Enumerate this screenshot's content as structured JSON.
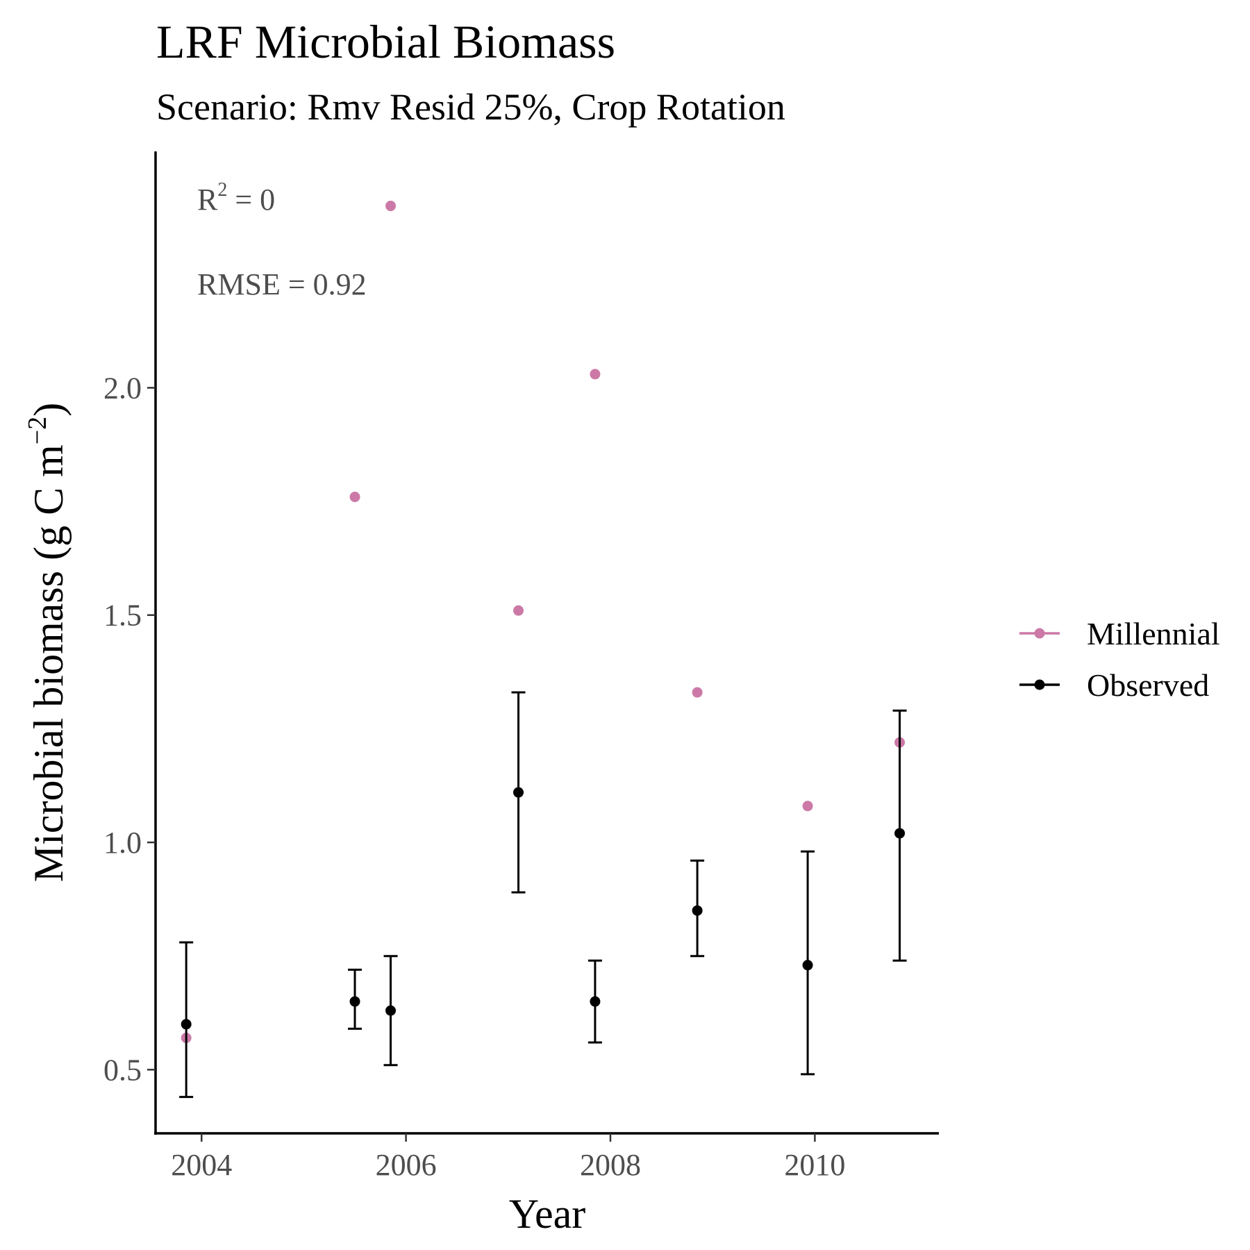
{
  "chart_data": {
    "type": "scatter",
    "title": "LRF Microbial Biomass",
    "subtitle": "Scenario: Rmv Resid 25%, Crop Rotation",
    "xlabel": "Year",
    "ylabel": {
      "main": "Microbial biomass (g C m",
      "superscript": "−2",
      "suffix": ")"
    },
    "xlim": [
      2003.55,
      2011.2
    ],
    "ylim": [
      0.36,
      2.52
    ],
    "x_ticks": [
      2004,
      2006,
      2008,
      2010
    ],
    "x_tick_labels": [
      "2004",
      "2006",
      "2008",
      "2010"
    ],
    "y_ticks": [
      0.5,
      1.0,
      1.5,
      2.0
    ],
    "y_tick_labels": [
      "0.5",
      "1.0",
      "1.5",
      "2.0"
    ],
    "grid": false,
    "legend_position": "right",
    "annotations": {
      "r2": {
        "base": "R",
        "superscript": "2",
        "rest": " = 0"
      },
      "rmse": "RMSE = 0.92"
    },
    "series": [
      {
        "name": "Millennial",
        "color": "#cc79a7",
        "points": [
          {
            "x": 2003.85,
            "y": 0.57
          },
          {
            "x": 2005.5,
            "y": 1.76
          },
          {
            "x": 2005.85,
            "y": 2.4
          },
          {
            "x": 2007.1,
            "y": 1.51
          },
          {
            "x": 2007.85,
            "y": 2.03
          },
          {
            "x": 2008.85,
            "y": 1.33
          },
          {
            "x": 2009.93,
            "y": 1.08
          },
          {
            "x": 2010.83,
            "y": 1.22
          }
        ]
      },
      {
        "name": "Observed",
        "color": "#000000",
        "points": [
          {
            "x": 2003.85,
            "y": 0.6,
            "ymin": 0.44,
            "ymax": 0.78
          },
          {
            "x": 2005.5,
            "y": 0.65,
            "ymin": 0.59,
            "ymax": 0.72
          },
          {
            "x": 2005.85,
            "y": 0.63,
            "ymin": 0.51,
            "ymax": 0.75
          },
          {
            "x": 2007.1,
            "y": 1.11,
            "ymin": 0.89,
            "ymax": 1.33
          },
          {
            "x": 2007.85,
            "y": 0.65,
            "ymin": 0.56,
            "ymax": 0.74
          },
          {
            "x": 2008.85,
            "y": 0.85,
            "ymin": 0.75,
            "ymax": 0.96
          },
          {
            "x": 2009.93,
            "y": 0.73,
            "ymin": 0.49,
            "ymax": 0.98
          },
          {
            "x": 2010.83,
            "y": 1.02,
            "ymin": 0.74,
            "ymax": 1.29
          }
        ]
      }
    ]
  }
}
